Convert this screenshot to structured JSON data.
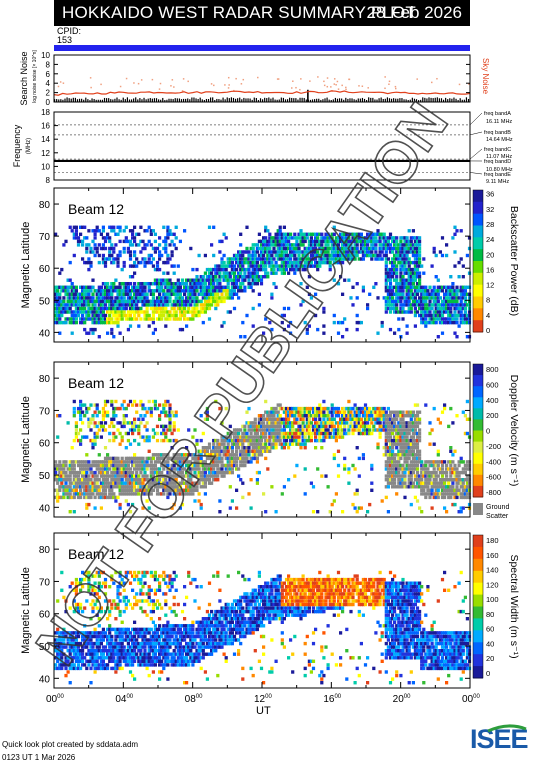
{
  "header": {
    "title": "HOKKAIDO WEST RADAR SUMMARY PLOT",
    "date": "28 Feb 2026",
    "cpid_label": "CPID:",
    "cpid_value": "153"
  },
  "watermark": "NOT FOR PUBLICATION",
  "footer": {
    "credit": "Quick look plot created by sddata.adm",
    "timestamp": "0123 UT  1 Mar 2026",
    "logo_text": "ISEE"
  },
  "colors": {
    "cpid_bar": "#2222ee",
    "noise_trace": "#e0401c",
    "power_scale": [
      "#e0401c",
      "#ff8800",
      "#ffcc00",
      "#ffff00",
      "#ccee00",
      "#66dd00",
      "#00bb44",
      "#00ccaa",
      "#00aadd",
      "#0055ff",
      "#2222cc",
      "#1a1a99"
    ],
    "velocity_scale": [
      "#e0401c",
      "#ff8800",
      "#ffcc00",
      "#ffff00",
      "#ddee44",
      "#99dd00",
      "#33bb33",
      "#00bbaa",
      "#00aaff",
      "#0066ff",
      "#2233dd",
      "#1a1a99"
    ],
    "width_scale": [
      "#1a1a99",
      "#2233dd",
      "#0066ff",
      "#00aaff",
      "#00ccaa",
      "#33bb33",
      "#99dd00",
      "#ffff00",
      "#ffcc00",
      "#ff8800",
      "#ff5500",
      "#e0401c"
    ],
    "ground_scatter": "#888888"
  },
  "chart_data": [
    {
      "type": "line",
      "panel": "search-noise",
      "ylabel": "Search Noise",
      "ylabel_sub": "log noise noise [× 10^n]",
      "side_label": "Sky Noise",
      "y_ticks": [
        "0",
        "2",
        "4",
        "6",
        "8",
        "10"
      ],
      "ylim": [
        0,
        10
      ],
      "series": [
        {
          "name": "Sky Noise",
          "x": [
            0,
            2,
            4,
            6,
            8,
            10,
            12,
            14,
            16,
            18,
            20,
            22,
            24
          ],
          "values": [
            1.6,
            1.8,
            2.0,
            2.1,
            2.0,
            2.2,
            2.1,
            2.0,
            2.2,
            2.1,
            1.9,
            1.8,
            1.7
          ]
        }
      ]
    },
    {
      "type": "line",
      "panel": "frequency",
      "ylabel": "Frequency",
      "ylabel_sub": "(MHz)",
      "y_ticks": [
        "8",
        "10",
        "12",
        "14",
        "16",
        "18"
      ],
      "ylim": [
        8,
        18
      ],
      "band_labels": [
        "freq bandA",
        "16.11 MHz",
        "freq bandB",
        "14.64 MHz",
        "freq bandC",
        "11.07 MHz",
        "freq bandD",
        "10.80 MHz",
        "freq bandE",
        "9.11 MHz"
      ],
      "bands": [
        16.11,
        14.64,
        11.07,
        10.8,
        9.11
      ],
      "series": [
        {
          "x": [
            0,
            24
          ],
          "values": [
            10.8,
            10.8
          ]
        }
      ]
    },
    {
      "type": "heatmap",
      "panel": "backscatter-power",
      "beam_label": "Beam 12",
      "ylabel": "Magnetic Latitude",
      "y_ticks": [
        "40",
        "50",
        "60",
        "70",
        "80"
      ],
      "ylim": [
        37,
        85
      ],
      "colorbar_label": "Backscatter Power (dB)",
      "colorbar_ticks": [
        "0",
        "4",
        "8",
        "12",
        "16",
        "20",
        "24",
        "28",
        "32",
        "36"
      ],
      "zlim": [
        0,
        36
      ]
    },
    {
      "type": "heatmap",
      "panel": "doppler-velocity",
      "beam_label": "Beam 12",
      "ylabel": "Magnetic Latitude",
      "y_ticks": [
        "40",
        "50",
        "60",
        "70",
        "80"
      ],
      "ylim": [
        37,
        85
      ],
      "colorbar_label": "Doppler Velocity (m s⁻¹)",
      "colorbar_ticks": [
        "800",
        "600",
        "400",
        "200",
        "0",
        "-200",
        "-400",
        "-600",
        "-800"
      ],
      "zlim": [
        -800,
        800
      ],
      "ground_label_1": "Ground",
      "ground_label_2": "Scatter"
    },
    {
      "type": "heatmap",
      "panel": "spectral-width",
      "beam_label": "Beam 12",
      "ylabel": "Magnetic Latitude",
      "y_ticks": [
        "40",
        "50",
        "60",
        "70",
        "80"
      ],
      "ylim": [
        37,
        85
      ],
      "colorbar_label": "Spectral Width (m s⁻¹)",
      "colorbar_ticks": [
        "180",
        "160",
        "140",
        "120",
        "100",
        "80",
        "60",
        "40",
        "20",
        "0"
      ],
      "zlim": [
        0,
        180
      ],
      "xlabel": "UT",
      "x_ticks": [
        "00",
        "04",
        "08",
        "12",
        "16",
        "20",
        "00"
      ],
      "x_tick_sup": "00",
      "xlim": [
        0,
        24
      ]
    }
  ]
}
